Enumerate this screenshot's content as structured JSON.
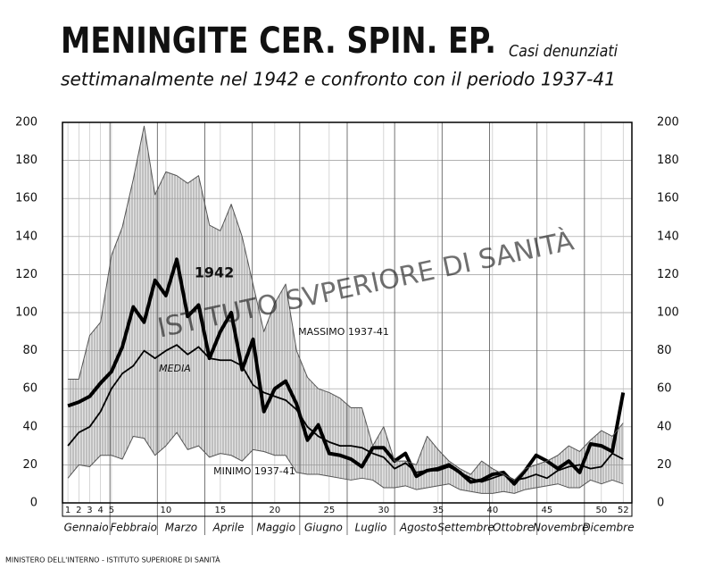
{
  "chart_data": {
    "type": "line",
    "title": "MENINGITE CER. SPIN. EP.",
    "subtitle": [
      "Casi denunziati",
      "settimanalmente nel 1942 e confronto con il periodo 1937-41"
    ],
    "footer": "MINISTERO DELL'INTERNO - ISTITUTO SUPERIORE DI SANITÀ",
    "watermark": "ISTITUTO SVPERIORE DI SANITÀ",
    "months": [
      "Gennaio",
      "Febbraio",
      "Marzo",
      "Aprile",
      "Maggio",
      "Giugno",
      "Luglio",
      "Agosto",
      "Settembre",
      "Ottobre",
      "Novembre",
      "Dicembre"
    ],
    "x": [
      1,
      2,
      3,
      4,
      5,
      6,
      7,
      8,
      9,
      10,
      11,
      12,
      13,
      14,
      15,
      16,
      17,
      18,
      19,
      20,
      21,
      22,
      23,
      24,
      25,
      26,
      27,
      28,
      29,
      30,
      31,
      32,
      33,
      34,
      35,
      36,
      37,
      38,
      39,
      40,
      41,
      42,
      43,
      44,
      45,
      46,
      47,
      48,
      49,
      50,
      51,
      52
    ],
    "xlim": [
      0.5,
      52.8
    ],
    "xticks": [
      1,
      2,
      3,
      4,
      5,
      10,
      15,
      20,
      25,
      30,
      35,
      40,
      45,
      50,
      52
    ],
    "ylim": [
      0,
      200
    ],
    "yticks": [
      0,
      20,
      40,
      60,
      80,
      100,
      120,
      140,
      160,
      180,
      200
    ],
    "y2lim": [
      0,
      200
    ],
    "y2ticks": [
      0,
      20,
      40,
      60,
      80,
      100,
      120,
      140,
      160,
      180,
      200
    ],
    "grid": true,
    "band_fill": "hatched",
    "series": [
      {
        "name": "1942",
        "color": "#000000",
        "width": 4,
        "values": [
          51,
          53,
          56,
          63,
          69,
          82,
          103,
          95,
          117,
          109,
          128,
          98,
          104,
          76,
          90,
          100,
          70,
          86,
          48,
          60,
          64,
          52,
          33,
          41,
          26,
          25,
          23,
          19,
          29,
          29,
          22,
          26,
          14,
          17,
          18,
          20,
          16,
          11,
          12,
          15,
          16,
          10,
          17,
          25,
          22,
          18,
          22,
          16,
          31,
          30,
          27,
          58
        ]
      },
      {
        "name": "MEDIA",
        "color": "#000000",
        "width": 1.8,
        "values": [
          30,
          37,
          40,
          48,
          60,
          68,
          72,
          80,
          76,
          80,
          83,
          78,
          82,
          76,
          75,
          75,
          72,
          62,
          58,
          56,
          54,
          49,
          40,
          35,
          32,
          30,
          30,
          29,
          26,
          24,
          18,
          21,
          16,
          17,
          17,
          19,
          16,
          13,
          11,
          13,
          15,
          12,
          13,
          15,
          13,
          17,
          19,
          20,
          18,
          19,
          26,
          23
        ]
      },
      {
        "name": "MASSIMO 1937-41",
        "color": "#555555",
        "width": 1,
        "values": [
          65,
          65,
          88,
          95,
          130,
          145,
          170,
          198,
          162,
          174,
          172,
          168,
          172,
          146,
          143,
          157,
          140,
          115,
          90,
          105,
          115,
          80,
          66,
          60,
          58,
          55,
          50,
          50,
          30,
          40,
          22,
          22,
          20,
          35,
          28,
          22,
          18,
          15,
          22,
          18,
          15,
          12,
          18,
          20,
          22,
          25,
          30,
          27,
          33,
          38,
          35,
          42
        ]
      },
      {
        "name": "MINIMO 1937-41",
        "color": "#555555",
        "width": 1,
        "values": [
          13,
          20,
          19,
          25,
          25,
          23,
          35,
          34,
          25,
          30,
          37,
          28,
          30,
          24,
          26,
          25,
          22,
          28,
          27,
          25,
          25,
          16,
          15,
          15,
          14,
          13,
          12,
          13,
          12,
          8,
          8,
          9,
          7,
          8,
          9,
          10,
          7,
          6,
          5,
          5,
          6,
          5,
          7,
          8,
          9,
          10,
          8,
          8,
          12,
          10,
          12,
          10
        ]
      }
    ]
  }
}
